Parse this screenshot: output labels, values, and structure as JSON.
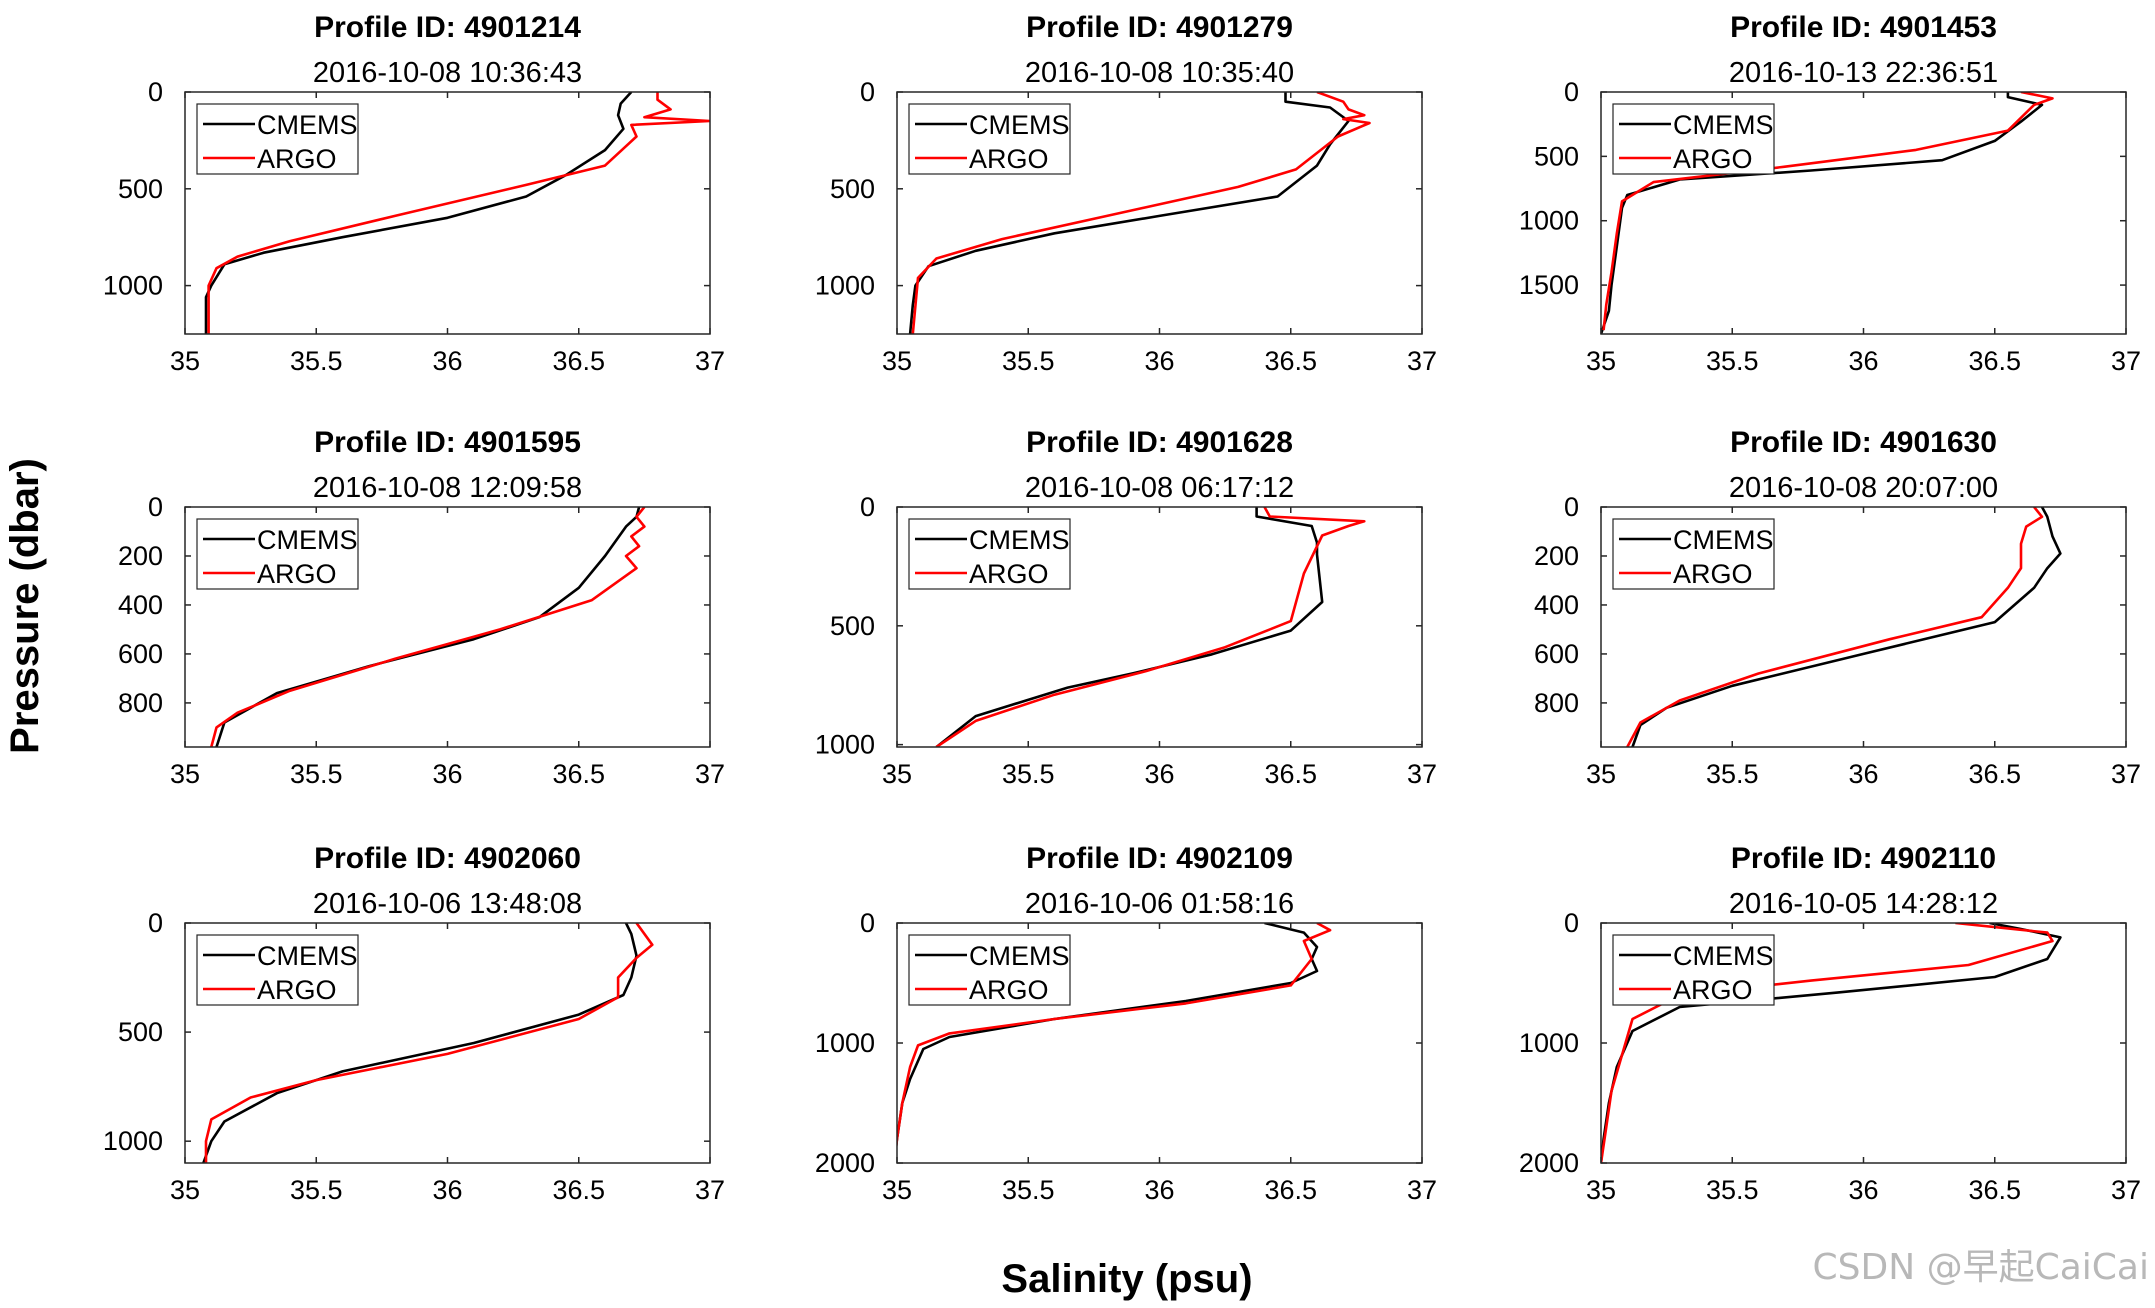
{
  "figure": {
    "ylabel": "Pressure (dbar)",
    "xlabel": "Salinity (psu)",
    "watermark": "CSDN @早起CaiCai",
    "legend_labels": [
      "CMEMS",
      "ARGO"
    ],
    "colors": {
      "CMEMS": "#000000",
      "ARGO": "#ff0000"
    }
  },
  "chart_data": [
    {
      "type": "line",
      "title": "Profile ID: 4901214",
      "subtitle": "2016-10-08 10:36:43",
      "xlim": [
        35,
        37
      ],
      "ylim": [
        0,
        1250
      ],
      "y_reversed": true,
      "xticks": [
        35,
        35.5,
        36,
        36.5,
        37
      ],
      "xtick_labels": [
        "35",
        "35.5",
        "36",
        "36.5",
        "37"
      ],
      "yticks": [
        0,
        500,
        1000
      ],
      "ytick_labels": [
        "0",
        "500",
        "1000"
      ],
      "legend": "top-left",
      "grid": false,
      "series": [
        {
          "name": "CMEMS",
          "color": "#000000",
          "x": [
            36.7,
            36.66,
            36.65,
            36.67,
            36.6,
            36.45,
            36.3,
            36.0,
            35.6,
            35.3,
            35.15,
            35.1,
            35.08,
            35.08
          ],
          "y": [
            0,
            60,
            120,
            190,
            300,
            430,
            540,
            650,
            750,
            830,
            890,
            1000,
            1060,
            1250
          ]
        },
        {
          "name": "ARGO",
          "color": "#ff0000",
          "x": [
            36.8,
            36.8,
            36.85,
            36.75,
            37.0,
            36.7,
            36.72,
            36.68,
            36.6,
            36.3,
            35.8,
            35.4,
            35.2,
            35.12,
            35.09,
            35.09
          ],
          "y": [
            0,
            40,
            90,
            130,
            150,
            170,
            230,
            280,
            380,
            480,
            640,
            770,
            850,
            910,
            1000,
            1250
          ]
        }
      ]
    },
    {
      "type": "line",
      "title": "Profile ID: 4901279",
      "subtitle": "2016-10-08 10:35:40",
      "xlim": [
        35,
        37
      ],
      "ylim": [
        0,
        1250
      ],
      "y_reversed": true,
      "xticks": [
        35,
        35.5,
        36,
        36.5,
        37
      ],
      "xtick_labels": [
        "35",
        "35.5",
        "36",
        "36.5",
        "37"
      ],
      "yticks": [
        0,
        500,
        1000
      ],
      "ytick_labels": [
        "0",
        "500",
        "1000"
      ],
      "legend": "top-left",
      "grid": false,
      "series": [
        {
          "name": "CMEMS",
          "color": "#000000",
          "x": [
            36.48,
            36.48,
            36.65,
            36.72,
            36.65,
            36.6,
            36.45,
            36.0,
            35.6,
            35.3,
            35.12,
            35.07,
            35.06,
            35.05
          ],
          "y": [
            0,
            50,
            80,
            150,
            270,
            380,
            540,
            640,
            730,
            820,
            900,
            1000,
            1100,
            1250
          ]
        },
        {
          "name": "ARGO",
          "color": "#ff0000",
          "x": [
            36.6,
            36.7,
            36.72,
            36.78,
            36.7,
            36.8,
            36.68,
            36.52,
            36.3,
            35.8,
            35.4,
            35.15,
            35.08,
            35.06
          ],
          "y": [
            0,
            50,
            90,
            120,
            140,
            160,
            230,
            400,
            490,
            640,
            760,
            860,
            960,
            1250
          ]
        }
      ]
    },
    {
      "type": "line",
      "title": "Profile ID: 4901453",
      "subtitle": "2016-10-13 22:36:51",
      "xlim": [
        35,
        37
      ],
      "ylim": [
        0,
        1880
      ],
      "y_reversed": true,
      "xticks": [
        35,
        35.5,
        36,
        36.5,
        37
      ],
      "xtick_labels": [
        "35",
        "35.5",
        "36",
        "36.5",
        "37"
      ],
      "yticks": [
        0,
        500,
        1000,
        1500
      ],
      "ytick_labels": [
        "0",
        "500",
        "1000",
        "1500"
      ],
      "legend": "top-left",
      "grid": false,
      "series": [
        {
          "name": "CMEMS",
          "color": "#000000",
          "x": [
            36.55,
            36.55,
            36.68,
            36.6,
            36.5,
            36.3,
            35.8,
            35.3,
            35.1,
            35.08,
            35.06,
            35.04,
            35.03,
            35.0
          ],
          "y": [
            0,
            40,
            100,
            230,
            380,
            530,
            610,
            680,
            800,
            900,
            1200,
            1500,
            1700,
            1880
          ]
        },
        {
          "name": "ARGO",
          "color": "#ff0000",
          "x": [
            36.6,
            36.72,
            36.65,
            36.55,
            36.2,
            35.7,
            35.2,
            35.08,
            35.06,
            35.04,
            35.02,
            35.01
          ],
          "y": [
            0,
            50,
            100,
            300,
            450,
            580,
            700,
            850,
            1100,
            1400,
            1650,
            1850
          ]
        }
      ]
    },
    {
      "type": "line",
      "title": "Profile ID: 4901595",
      "subtitle": "2016-10-08 12:09:58",
      "xlim": [
        35,
        37
      ],
      "ylim": [
        0,
        980
      ],
      "y_reversed": true,
      "xticks": [
        35,
        35.5,
        36,
        36.5,
        37
      ],
      "xtick_labels": [
        "35",
        "35.5",
        "36",
        "36.5",
        "37"
      ],
      "yticks": [
        0,
        200,
        400,
        600,
        800
      ],
      "ytick_labels": [
        "0",
        "200",
        "400",
        "600",
        "800"
      ],
      "legend": "top-left",
      "grid": false,
      "series": [
        {
          "name": "CMEMS",
          "color": "#000000",
          "x": [
            36.73,
            36.72,
            36.68,
            36.6,
            36.5,
            36.35,
            36.1,
            35.7,
            35.35,
            35.15,
            35.12
          ],
          "y": [
            0,
            40,
            80,
            200,
            330,
            450,
            540,
            650,
            760,
            880,
            980
          ]
        },
        {
          "name": "ARGO",
          "color": "#ff0000",
          "x": [
            36.75,
            36.72,
            36.75,
            36.7,
            36.73,
            36.68,
            36.72,
            36.55,
            36.2,
            35.8,
            35.4,
            35.2,
            35.12,
            35.1
          ],
          "y": [
            0,
            40,
            80,
            120,
            160,
            200,
            250,
            380,
            500,
            620,
            750,
            840,
            900,
            980
          ]
        }
      ]
    },
    {
      "type": "line",
      "title": "Profile ID: 4901628",
      "subtitle": "2016-10-08 06:17:12",
      "xlim": [
        35,
        37
      ],
      "ylim": [
        0,
        1010
      ],
      "y_reversed": true,
      "xticks": [
        35,
        35.5,
        36,
        36.5,
        37
      ],
      "xtick_labels": [
        "35",
        "35.5",
        "36",
        "36.5",
        "37"
      ],
      "yticks": [
        0,
        500,
        1000
      ],
      "ytick_labels": [
        "0",
        "500",
        "1000"
      ],
      "legend": "top-left",
      "grid": false,
      "series": [
        {
          "name": "CMEMS",
          "color": "#000000",
          "x": [
            36.37,
            36.37,
            36.58,
            36.6,
            36.6,
            36.62,
            36.5,
            36.2,
            35.9,
            35.65,
            35.3,
            35.15
          ],
          "y": [
            0,
            40,
            80,
            150,
            200,
            400,
            520,
            620,
            700,
            760,
            880,
            1010
          ]
        },
        {
          "name": "ARGO",
          "color": "#ff0000",
          "x": [
            36.4,
            36.42,
            36.78,
            36.72,
            36.62,
            36.55,
            36.5,
            36.25,
            35.95,
            35.6,
            35.3,
            35.15
          ],
          "y": [
            0,
            40,
            60,
            80,
            120,
            280,
            480,
            590,
            690,
            790,
            900,
            1010
          ]
        }
      ]
    },
    {
      "type": "line",
      "title": "Profile ID: 4901630",
      "subtitle": "2016-10-08 20:07:00",
      "xlim": [
        35,
        37
      ],
      "ylim": [
        0,
        980
      ],
      "y_reversed": true,
      "xticks": [
        35,
        35.5,
        36,
        36.5,
        37
      ],
      "xtick_labels": [
        "35",
        "35.5",
        "36",
        "36.5",
        "37"
      ],
      "yticks": [
        0,
        200,
        400,
        600,
        800
      ],
      "ytick_labels": [
        "0",
        "200",
        "400",
        "600",
        "800"
      ],
      "legend": "top-left",
      "grid": false,
      "series": [
        {
          "name": "CMEMS",
          "color": "#000000",
          "x": [
            36.68,
            36.7,
            36.72,
            36.75,
            36.7,
            36.65,
            36.5,
            36.0,
            35.5,
            35.25,
            35.15,
            35.12
          ],
          "y": [
            0,
            40,
            120,
            190,
            250,
            330,
            470,
            600,
            730,
            820,
            890,
            980
          ]
        },
        {
          "name": "ARGO",
          "color": "#ff0000",
          "x": [
            36.65,
            36.68,
            36.62,
            36.6,
            36.6,
            36.55,
            36.45,
            36.1,
            35.6,
            35.3,
            35.15,
            35.1
          ],
          "y": [
            0,
            40,
            80,
            150,
            250,
            330,
            450,
            540,
            680,
            790,
            880,
            980
          ]
        }
      ]
    },
    {
      "type": "line",
      "title": "Profile ID: 4902060",
      "subtitle": "2016-10-06 13:48:08",
      "xlim": [
        35,
        37
      ],
      "ylim": [
        0,
        1100
      ],
      "y_reversed": true,
      "xticks": [
        35,
        35.5,
        36,
        36.5,
        37
      ],
      "xtick_labels": [
        "35",
        "35.5",
        "36",
        "36.5",
        "37"
      ],
      "yticks": [
        0,
        500,
        1000
      ],
      "ytick_labels": [
        "0",
        "500",
        "1000"
      ],
      "legend": "top-left",
      "grid": false,
      "series": [
        {
          "name": "CMEMS",
          "color": "#000000",
          "x": [
            36.68,
            36.7,
            36.72,
            36.7,
            36.67,
            36.5,
            36.1,
            35.6,
            35.35,
            35.15,
            35.1,
            35.07
          ],
          "y": [
            0,
            50,
            150,
            250,
            330,
            420,
            550,
            680,
            780,
            910,
            1000,
            1100
          ]
        },
        {
          "name": "ARGO",
          "color": "#ff0000",
          "x": [
            36.72,
            36.78,
            36.72,
            36.65,
            36.65,
            36.5,
            36.0,
            35.5,
            35.25,
            35.1,
            35.08,
            35.08
          ],
          "y": [
            0,
            100,
            160,
            250,
            340,
            440,
            600,
            720,
            800,
            900,
            1000,
            1100
          ]
        }
      ]
    },
    {
      "type": "line",
      "title": "Profile ID: 4902109",
      "subtitle": "2016-10-06 01:58:16",
      "xlim": [
        35,
        37
      ],
      "ylim": [
        0,
        2000
      ],
      "y_reversed": true,
      "xticks": [
        35,
        35.5,
        36,
        36.5,
        37
      ],
      "xtick_labels": [
        "35",
        "35.5",
        "36",
        "36.5",
        "37"
      ],
      "yticks": [
        0,
        1000,
        2000
      ],
      "ytick_labels": [
        "0",
        "1000",
        "2000"
      ],
      "legend": "top-left",
      "grid": false,
      "series": [
        {
          "name": "CMEMS",
          "color": "#000000",
          "x": [
            36.4,
            36.55,
            36.6,
            36.58,
            36.6,
            36.5,
            36.1,
            35.6,
            35.2,
            35.1,
            35.05,
            35.02,
            35.0,
            34.99
          ],
          "y": [
            0,
            80,
            200,
            300,
            400,
            500,
            650,
            800,
            950,
            1050,
            1300,
            1500,
            1800,
            2000
          ]
        },
        {
          "name": "ARGO",
          "color": "#ff0000",
          "x": [
            36.6,
            36.65,
            36.55,
            36.58,
            36.5,
            36.1,
            35.6,
            35.2,
            35.08,
            35.05,
            35.02,
            35.0,
            34.99
          ],
          "y": [
            0,
            60,
            150,
            300,
            520,
            670,
            800,
            920,
            1020,
            1200,
            1500,
            1800,
            2000
          ]
        }
      ]
    },
    {
      "type": "line",
      "title": "Profile ID: 4902110",
      "subtitle": "2016-10-05 14:28:12",
      "xlim": [
        35,
        37
      ],
      "ylim": [
        0,
        2000
      ],
      "y_reversed": true,
      "xticks": [
        35,
        35.5,
        36,
        36.5,
        37
      ],
      "xtick_labels": [
        "35",
        "35.5",
        "36",
        "36.5",
        "37"
      ],
      "yticks": [
        0,
        1000,
        2000
      ],
      "ytick_labels": [
        "0",
        "1000",
        "2000"
      ],
      "legend": "top-left",
      "grid": false,
      "series": [
        {
          "name": "CMEMS",
          "color": "#000000",
          "x": [
            36.48,
            36.6,
            36.75,
            36.7,
            36.5,
            35.9,
            35.3,
            35.12,
            35.06,
            35.03,
            35.01,
            35.0
          ],
          "y": [
            0,
            50,
            120,
            300,
            450,
            580,
            700,
            900,
            1200,
            1500,
            1800,
            2000
          ]
        },
        {
          "name": "ARGO",
          "color": "#ff0000",
          "x": [
            36.35,
            36.7,
            36.72,
            36.4,
            35.8,
            35.3,
            35.12,
            35.08,
            35.04,
            35.02,
            35.0
          ],
          "y": [
            0,
            80,
            150,
            350,
            480,
            600,
            800,
            1100,
            1400,
            1700,
            2000
          ]
        }
      ]
    }
  ]
}
